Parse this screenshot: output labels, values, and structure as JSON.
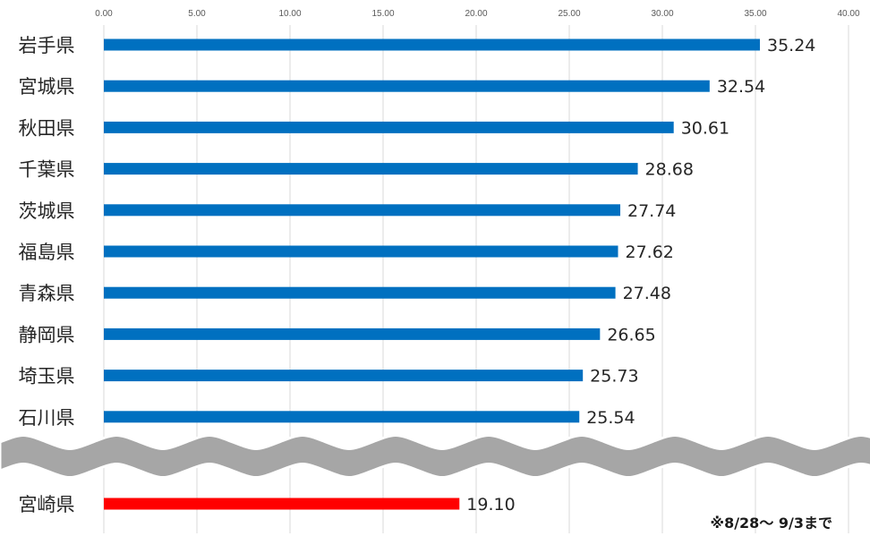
{
  "chart_data": {
    "type": "bar",
    "orientation": "horizontal",
    "xlim": [
      0,
      40
    ],
    "xticks": [
      "0.00",
      "5.00",
      "10.00",
      "15.00",
      "20.00",
      "25.00",
      "30.00",
      "35.00",
      "40.00"
    ],
    "grid": true,
    "categories": [
      "岩手県",
      "宮城県",
      "秋田県",
      "千葉県",
      "茨城県",
      "福島県",
      "青森県",
      "静岡県",
      "埼玉県",
      "石川県"
    ],
    "values": [
      35.24,
      32.54,
      30.61,
      28.68,
      27.74,
      27.62,
      27.48,
      26.65,
      25.73,
      25.54
    ],
    "value_labels": [
      "35.24",
      "32.54",
      "30.61",
      "28.68",
      "27.74",
      "27.62",
      "27.48",
      "26.65",
      "25.73",
      "25.54"
    ],
    "bar_color": "#0070C0",
    "axis_break": true,
    "highlight": {
      "category": "宮崎県",
      "value": 19.1,
      "value_label": "19.10",
      "color": "#FF0000"
    },
    "note": "※8/28～ 9/3まで"
  }
}
